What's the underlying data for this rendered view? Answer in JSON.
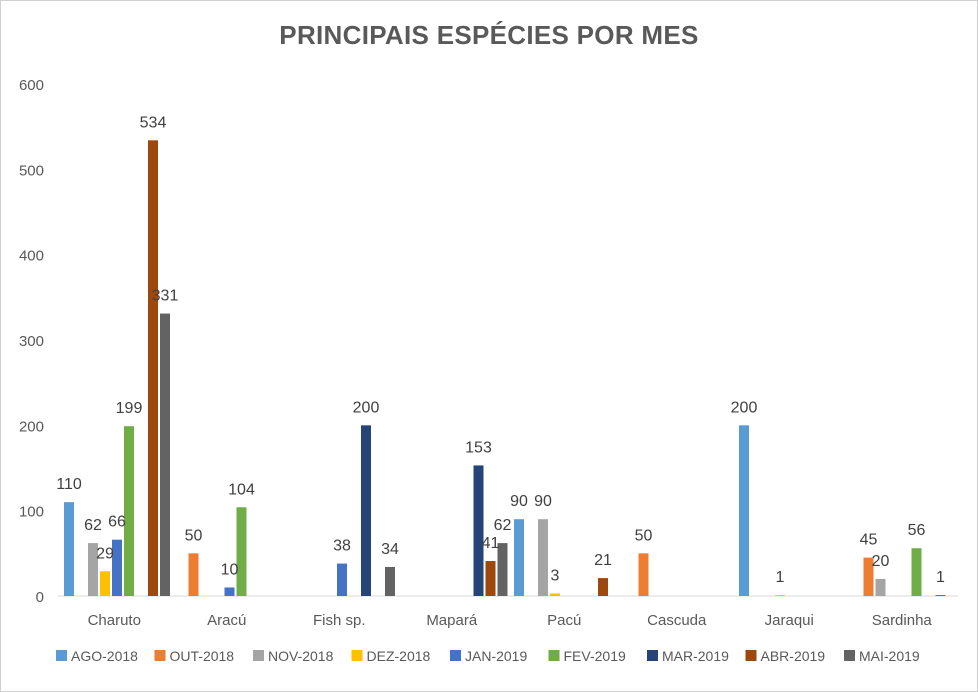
{
  "chart_data": {
    "type": "bar",
    "title": "PRINCIPAIS ESPÉCIES POR MES",
    "xlabel": "",
    "ylabel": "",
    "ylim": [
      0,
      600
    ],
    "yticks": [
      "0",
      "100",
      "200",
      "300",
      "400",
      "500",
      "600"
    ],
    "grid": false,
    "legend_position": "bottom",
    "categories": [
      "Charuto",
      "Aracú",
      "Fish sp.",
      "Mapará",
      "Pacú",
      "Cascuda",
      "Jaraqui",
      "Sardinha"
    ],
    "series": [
      {
        "name": "AGO-2018",
        "color": "#5B9BD5",
        "values": [
          110,
          null,
          null,
          null,
          90,
          null,
          200,
          null
        ],
        "labels": [
          "110",
          "",
          "",
          "",
          "90",
          "",
          "200",
          ""
        ]
      },
      {
        "name": "OUT-2018",
        "color": "#ED7D31",
        "values": [
          null,
          50,
          null,
          null,
          null,
          50,
          null,
          45
        ],
        "labels": [
          "",
          "50",
          "",
          "",
          "",
          "50",
          "",
          "45"
        ]
      },
      {
        "name": "NOV-2018",
        "color": "#A5A5A5",
        "values": [
          62,
          null,
          null,
          null,
          90,
          null,
          null,
          20
        ],
        "labels": [
          "62",
          "",
          "",
          "",
          "90",
          "",
          "",
          "20"
        ]
      },
      {
        "name": "DEZ-2018",
        "color": "#FFC000",
        "values": [
          29,
          null,
          null,
          null,
          3,
          null,
          1,
          null
        ],
        "labels": [
          "29",
          "",
          "",
          "",
          "3",
          "",
          "1",
          ""
        ]
      },
      {
        "name": "JAN-2019",
        "color": "#4472C4",
        "values": [
          66,
          10,
          38,
          null,
          null,
          null,
          null,
          null
        ],
        "labels": [
          "66",
          "10",
          "38",
          "",
          "",
          "",
          "",
          ""
        ]
      },
      {
        "name": "FEV-2019",
        "color": "#70AD47",
        "values": [
          199,
          104,
          null,
          null,
          null,
          null,
          null,
          56
        ],
        "labels": [
          "199",
          "104",
          "",
          "",
          "",
          "",
          "",
          "56"
        ]
      },
      {
        "name": "MAR-2019",
        "color": "#264478",
        "values": [
          null,
          null,
          200,
          153,
          null,
          null,
          null,
          null
        ],
        "labels": [
          "",
          "",
          "200",
          "153",
          "",
          "",
          "",
          ""
        ]
      },
      {
        "name": "ABR-2019",
        "color": "#9E480E",
        "values": [
          534,
          null,
          null,
          41,
          21,
          null,
          null,
          1
        ],
        "labels": [
          "534",
          "",
          "",
          "41",
          "21",
          "",
          "",
          "1"
        ]
      },
      {
        "name": "MAI-2019",
        "color": "#636363",
        "values": [
          331,
          null,
          34,
          62,
          null,
          null,
          null,
          null
        ],
        "labels": [
          "331",
          "",
          "34",
          "62",
          "",
          "",
          "",
          ""
        ]
      }
    ]
  }
}
